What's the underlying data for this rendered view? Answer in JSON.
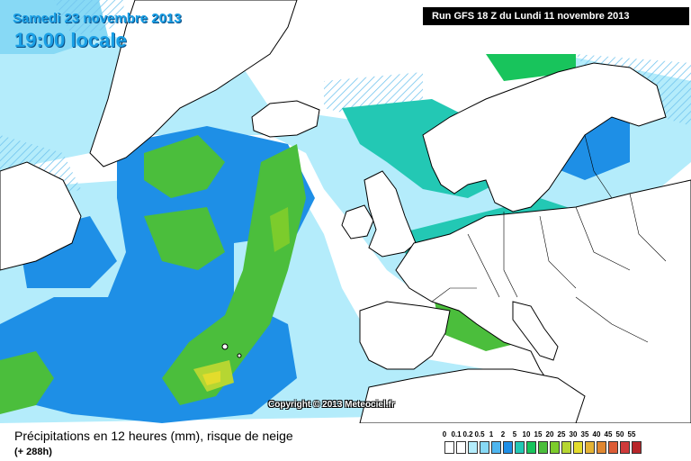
{
  "header": {
    "date": "Samedi 23 novembre 2013",
    "time": "19:00 locale",
    "run": "Run GFS 18 Z du Lundi 11 novembre 2013"
  },
  "map": {
    "copyright": "Copyright © 2013 Meteociel.fr"
  },
  "footer": {
    "title": "Précipitations en 12 heures (mm), risque de neige",
    "lead_time": "(+ 288h)"
  },
  "legend": {
    "labels": [
      "0",
      "0.1",
      "0.2",
      "0.5",
      "1",
      "2",
      "5",
      "10",
      "15",
      "20",
      "25",
      "30",
      "35",
      "40",
      "45",
      "50",
      "55"
    ],
    "colors": [
      "#ffffff",
      "#ffffff",
      "#b4ecfb",
      "#87d9f5",
      "#4fb6ef",
      "#1e8fe6",
      "#23c8b4",
      "#18c45c",
      "#4bbe3c",
      "#7ccc2c",
      "#b6d632",
      "#e3dc2c",
      "#e4b334",
      "#e08730",
      "#dc5c36",
      "#cf3a3a",
      "#b8262a"
    ]
  },
  "colors": {
    "light_blue": "#b4ecfb",
    "blue": "#1e8fe6",
    "teal": "#23c8b4",
    "green": "#4bbe3c",
    "yellow_green": "#b6d632",
    "title_text": "#1aa0e6"
  }
}
